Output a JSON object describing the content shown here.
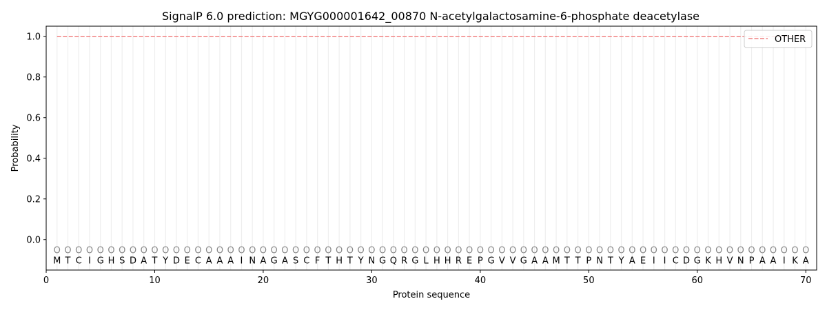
{
  "chart_data": {
    "type": "line",
    "title": "SignalP 6.0 prediction: MGYG000001642_00870 N-acetylgalactosamine-6-phosphate deacetylase",
    "xlabel": "Protein sequence",
    "ylabel": "Probability",
    "xlim": [
      0,
      71
    ],
    "ylim": [
      -0.15,
      1.05
    ],
    "xticks": [
      0,
      10,
      20,
      30,
      40,
      50,
      60,
      70
    ],
    "yticks": [
      0.0,
      0.2,
      0.4,
      0.6,
      0.8,
      1.0
    ],
    "ytick_labels": [
      "0.0",
      "0.2",
      "0.4",
      "0.6",
      "0.8",
      "1.0"
    ],
    "grid": "vertical lines at each residue",
    "legend_placement": "top-right",
    "sequence": [
      "M",
      "T",
      "C",
      "I",
      "G",
      "H",
      "S",
      "D",
      "A",
      "T",
      "Y",
      "D",
      "E",
      "C",
      "A",
      "A",
      "A",
      "I",
      "N",
      "A",
      "G",
      "A",
      "S",
      "C",
      "F",
      "T",
      "H",
      "T",
      "Y",
      "N",
      "G",
      "Q",
      "R",
      "G",
      "L",
      "H",
      "H",
      "R",
      "E",
      "P",
      "G",
      "V",
      "V",
      "G",
      "A",
      "A",
      "M",
      "T",
      "T",
      "P",
      "N",
      "T",
      "Y",
      "A",
      "E",
      "I",
      "I",
      "C",
      "D",
      "G",
      "K",
      "H",
      "V",
      "N",
      "P",
      "A",
      "A",
      "I",
      "K",
      "A"
    ],
    "per_residue_label": "O",
    "series": [
      {
        "name": "OTHER",
        "color": "#f08080",
        "style": "dashed",
        "x_range": [
          1,
          70
        ],
        "value": 1.0
      }
    ]
  }
}
